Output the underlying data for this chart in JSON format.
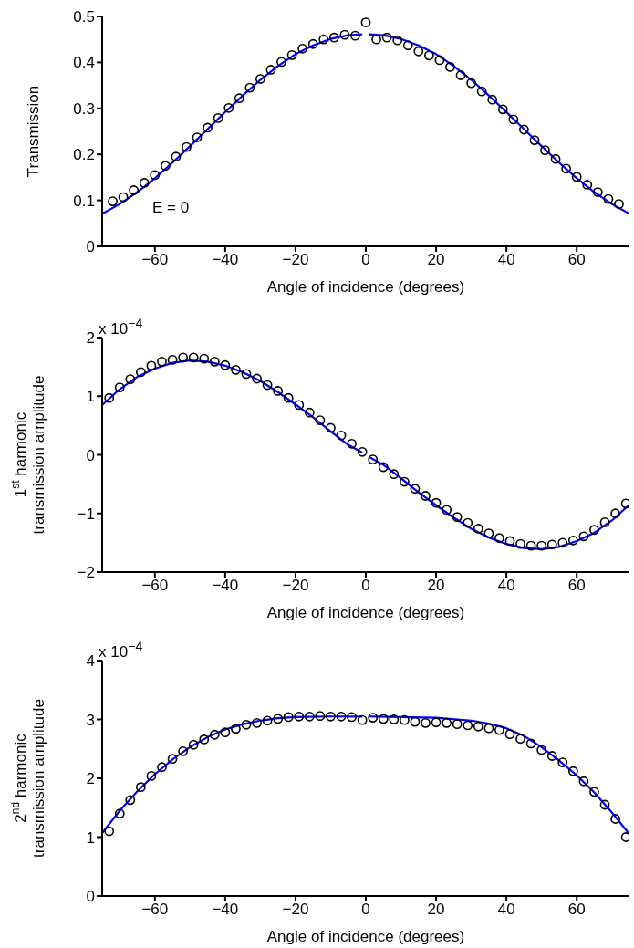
{
  "chart_data": [
    {
      "type": "scatter",
      "xlabel": "Angle of incidence (degrees)",
      "ylabel": "Transmission",
      "annotations": [
        "E = 0"
      ],
      "xlim": [
        -75,
        75
      ],
      "xticks": [
        -60,
        -40,
        -20,
        0,
        20,
        40,
        60
      ],
      "ylim": [
        0,
        0.5
      ],
      "yticks": [
        0,
        0.1,
        0.2,
        0.3,
        0.4,
        0.5
      ],
      "grid": false,
      "legend": false,
      "series": [
        {
          "marker": "circle",
          "color": "#000000",
          "x": [
            -72,
            -69,
            -66,
            -63,
            -60,
            -57,
            -54,
            -51,
            -48,
            -45,
            -42,
            -39,
            -36,
            -33,
            -30,
            -27,
            -24,
            -21,
            -18,
            -15,
            -12,
            -9,
            -6,
            -3,
            0,
            3,
            6,
            9,
            12,
            15,
            18,
            21,
            24,
            27,
            30,
            33,
            36,
            39,
            42,
            45,
            48,
            51,
            54,
            57,
            60,
            63,
            66,
            69,
            72
          ],
          "values": [
            0.098,
            0.107,
            0.122,
            0.138,
            0.155,
            0.175,
            0.195,
            0.216,
            0.237,
            0.258,
            0.279,
            0.301,
            0.322,
            0.345,
            0.364,
            0.384,
            0.401,
            0.416,
            0.43,
            0.44,
            0.45,
            0.454,
            0.46,
            0.458,
            0.487,
            0.45,
            0.454,
            0.448,
            0.437,
            0.424,
            0.415,
            0.405,
            0.39,
            0.372,
            0.355,
            0.337,
            0.319,
            0.298,
            0.276,
            0.254,
            0.231,
            0.209,
            0.19,
            0.169,
            0.151,
            0.134,
            0.118,
            0.103,
            0.092
          ]
        },
        {
          "type": "line",
          "color": "#0000ff",
          "line_style": "solid",
          "x": [
            -75,
            -70,
            -65,
            -60,
            -55,
            -50,
            -45,
            -40,
            -35,
            -30,
            -25,
            -20,
            -15,
            -10,
            -5,
            -1,
            0,
            1,
            5,
            10,
            15,
            20,
            25,
            30,
            35,
            40,
            45,
            50,
            55,
            60,
            65,
            70,
            75
          ],
          "values": [
            0.071,
            0.092,
            0.118,
            0.148,
            0.182,
            0.218,
            0.255,
            0.292,
            0.328,
            0.362,
            0.392,
            0.418,
            0.437,
            0.451,
            0.459,
            0.461,
            null,
            0.461,
            0.459,
            0.451,
            0.437,
            0.418,
            0.392,
            0.362,
            0.328,
            0.292,
            0.255,
            0.218,
            0.182,
            0.148,
            0.118,
            0.092,
            0.071
          ]
        }
      ]
    },
    {
      "type": "scatter",
      "xlabel": "Angle of incidence (degrees)",
      "ylabel": "1$^{st}$ harmonic\ntransmission amplitude",
      "annotations": [
        "x 10$^{−4}$"
      ],
      "xlim": [
        -75,
        75
      ],
      "xticks": [
        -60,
        -40,
        -20,
        0,
        20,
        40,
        60
      ],
      "ylim": [
        -2,
        2
      ],
      "yticks": [
        -2,
        -1,
        0,
        1,
        2
      ],
      "grid": false,
      "legend": false,
      "series": [
        {
          "marker": "circle",
          "color": "#000000",
          "x": [
            -73,
            -70,
            -67,
            -64,
            -61,
            -58,
            -55,
            -52,
            -49,
            -46,
            -43,
            -40,
            -37,
            -34,
            -31,
            -28,
            -25,
            -22,
            -19,
            -16,
            -13,
            -10,
            -7,
            -4,
            -1,
            2,
            5,
            8,
            11,
            14,
            17,
            20,
            23,
            26,
            29,
            32,
            35,
            38,
            41,
            44,
            47,
            50,
            53,
            56,
            59,
            62,
            65,
            68,
            71,
            74
          ],
          "values": [
            0.97,
            1.15,
            1.29,
            1.41,
            1.52,
            1.59,
            1.62,
            1.66,
            1.66,
            1.64,
            1.59,
            1.53,
            1.45,
            1.38,
            1.3,
            1.19,
            1.09,
            0.97,
            0.85,
            0.72,
            0.59,
            0.46,
            0.33,
            0.19,
            0.05,
            -0.08,
            -0.21,
            -0.33,
            -0.46,
            -0.58,
            -0.7,
            -0.82,
            -0.94,
            -1.06,
            -1.16,
            -1.26,
            -1.34,
            -1.42,
            -1.47,
            -1.52,
            -1.55,
            -1.55,
            -1.53,
            -1.5,
            -1.46,
            -1.39,
            -1.28,
            -1.15,
            -1.0,
            -0.83
          ]
        },
        {
          "type": "line",
          "color": "#0000ff",
          "line_style": "solid",
          "x": [
            -75,
            -70,
            -65,
            -60,
            -55,
            -50,
            -45,
            -40,
            -35,
            -30,
            -25,
            -20,
            -15,
            -10,
            -5,
            -1,
            0,
            1,
            5,
            10,
            15,
            20,
            25,
            30,
            35,
            40,
            45,
            50,
            55,
            60,
            65,
            70,
            75
          ],
          "values": [
            0.85,
            1.12,
            1.33,
            1.47,
            1.57,
            1.61,
            1.59,
            1.52,
            1.41,
            1.26,
            1.07,
            0.86,
            0.64,
            0.4,
            0.17,
            0.04,
            null,
            -0.04,
            -0.17,
            -0.4,
            -0.64,
            -0.86,
            -1.07,
            -1.26,
            -1.41,
            -1.52,
            -1.59,
            -1.61,
            -1.57,
            -1.47,
            -1.33,
            -1.12,
            -0.85
          ]
        }
      ]
    },
    {
      "type": "scatter",
      "xlabel": "Angle of incidence (degrees)",
      "ylabel": "2$^{nd}$ harmonic\ntransmission amplitude",
      "annotations": [
        "x 10$^{−4}$"
      ],
      "xlim": [
        -75,
        75
      ],
      "xticks": [
        -60,
        -40,
        -20,
        0,
        20,
        40,
        60
      ],
      "ylim": [
        0,
        4
      ],
      "yticks": [
        0,
        1,
        2,
        3,
        4
      ],
      "grid": false,
      "legend": false,
      "series": [
        {
          "marker": "circle",
          "color": "#000000",
          "x": [
            -73,
            -70,
            -67,
            -64,
            -61,
            -58,
            -55,
            -52,
            -49,
            -46,
            -43,
            -40,
            -37,
            -34,
            -31,
            -28,
            -25,
            -22,
            -19,
            -16,
            -13,
            -10,
            -7,
            -4,
            -1,
            2,
            5,
            8,
            11,
            14,
            17,
            20,
            23,
            26,
            29,
            32,
            35,
            38,
            41,
            44,
            47,
            50,
            53,
            56,
            59,
            62,
            65,
            68,
            71,
            74
          ],
          "values": [
            1.1,
            1.4,
            1.63,
            1.85,
            2.04,
            2.19,
            2.33,
            2.46,
            2.57,
            2.66,
            2.74,
            2.78,
            2.84,
            2.91,
            2.94,
            2.98,
            3.01,
            3.04,
            3.05,
            3.05,
            3.06,
            3.05,
            3.05,
            3.04,
            2.99,
            3.03,
            3.01,
            3.0,
            2.99,
            2.96,
            2.94,
            2.95,
            2.94,
            2.92,
            2.9,
            2.88,
            2.85,
            2.82,
            2.75,
            2.67,
            2.59,
            2.48,
            2.38,
            2.27,
            2.12,
            1.95,
            1.77,
            1.55,
            1.31,
            1.0
          ]
        },
        {
          "type": "line",
          "color": "#0000ff",
          "line_style": "solid",
          "x": [
            -75,
            -70,
            -65,
            -60,
            -55,
            -50,
            -45,
            -40,
            -35,
            -30,
            -25,
            -20,
            -10,
            -1,
            0,
            1,
            10,
            20,
            30,
            35,
            40,
            45,
            50,
            55,
            60,
            65,
            70,
            75
          ],
          "values": [
            1.07,
            1.45,
            1.78,
            2.07,
            2.32,
            2.53,
            2.7,
            2.83,
            2.92,
            2.98,
            3.02,
            3.04,
            3.05,
            3.05,
            null,
            3.05,
            3.04,
            3.03,
            2.98,
            2.93,
            2.85,
            2.72,
            2.53,
            2.3,
            2.05,
            1.76,
            1.42,
            1.05
          ]
        }
      ]
    }
  ]
}
